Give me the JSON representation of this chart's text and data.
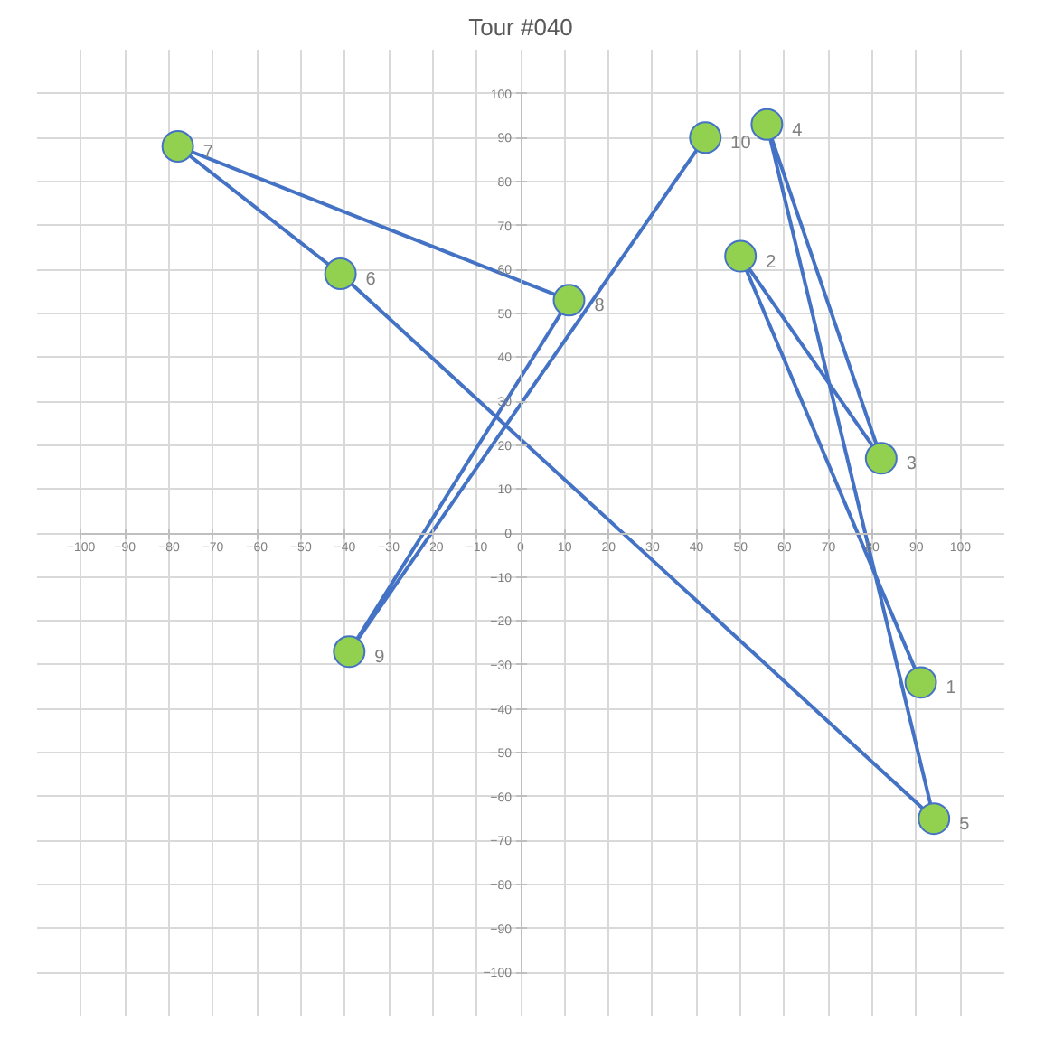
{
  "chart_data": {
    "type": "line",
    "title": "Tour #040",
    "x": [
      91,
      50,
      82,
      56,
      94,
      -41,
      -78,
      11,
      -39,
      42
    ],
    "series": [
      {
        "color": "#4472c4",
        "values": [
          -34,
          63,
          17,
          93,
          -65,
          59,
          88,
          53,
          -27,
          90
        ]
      }
    ],
    "marker": "circle",
    "line_style": "solid",
    "grid": true,
    "xlim": [
      -100,
      100
    ],
    "ylim": [
      -100,
      100
    ],
    "xticks": [
      -100,
      -90,
      -80,
      -70,
      -60,
      -50,
      -40,
      -30,
      -20,
      -10,
      0,
      10,
      20,
      30,
      40,
      50,
      60,
      70,
      80,
      90,
      100
    ],
    "yticks": [
      -100,
      -90,
      -80,
      -70,
      -60,
      -50,
      -40,
      -30,
      -20,
      -10,
      0,
      10,
      20,
      30,
      40,
      50,
      60,
      70,
      80,
      90,
      100
    ],
    "annotations": [
      {
        "text": "1",
        "x": 91,
        "y": -34
      },
      {
        "text": "2",
        "x": 50,
        "y": 63
      },
      {
        "text": "3",
        "x": 82,
        "y": 17
      },
      {
        "text": "4",
        "x": 56,
        "y": 93
      },
      {
        "text": "5",
        "x": 94,
        "y": -65
      },
      {
        "text": "6",
        "x": -41,
        "y": 59
      },
      {
        "text": "7",
        "x": -78,
        "y": 88
      },
      {
        "text": "8",
        "x": 11,
        "y": 53
      },
      {
        "text": "9",
        "x": -39,
        "y": -27
      },
      {
        "text": "10",
        "x": 42,
        "y": 90
      }
    ]
  }
}
